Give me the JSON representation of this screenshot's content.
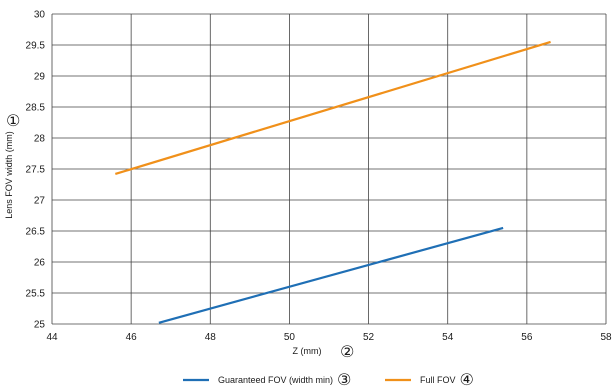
{
  "chart_data": {
    "type": "line",
    "xlabel": "Z (mm)",
    "ylabel": "Lens FOV width (mm)",
    "xlabel_marker": "②",
    "ylabel_marker": "①",
    "xlim": [
      44,
      58
    ],
    "ylim": [
      25,
      30
    ],
    "x_ticks": [
      "44",
      "46",
      "48",
      "50",
      "52",
      "54",
      "56",
      "58"
    ],
    "y_ticks": [
      "25",
      "25.5",
      "26",
      "26.5",
      "27",
      "27.5",
      "28",
      "28.5",
      "29",
      "29.5",
      "30"
    ],
    "grid": true,
    "legend_position": "bottom",
    "series": [
      {
        "name": "Guaranteed FOV (width min)",
        "marker": "③",
        "color": "#1f6fb5",
        "x": [
          46.7,
          55.4
        ],
        "y": [
          25.02,
          26.55
        ]
      },
      {
        "name": "Full FOV",
        "marker": "④",
        "color": "#f0901a",
        "x": [
          45.6,
          56.6
        ],
        "y": [
          27.42,
          29.55
        ]
      }
    ]
  }
}
